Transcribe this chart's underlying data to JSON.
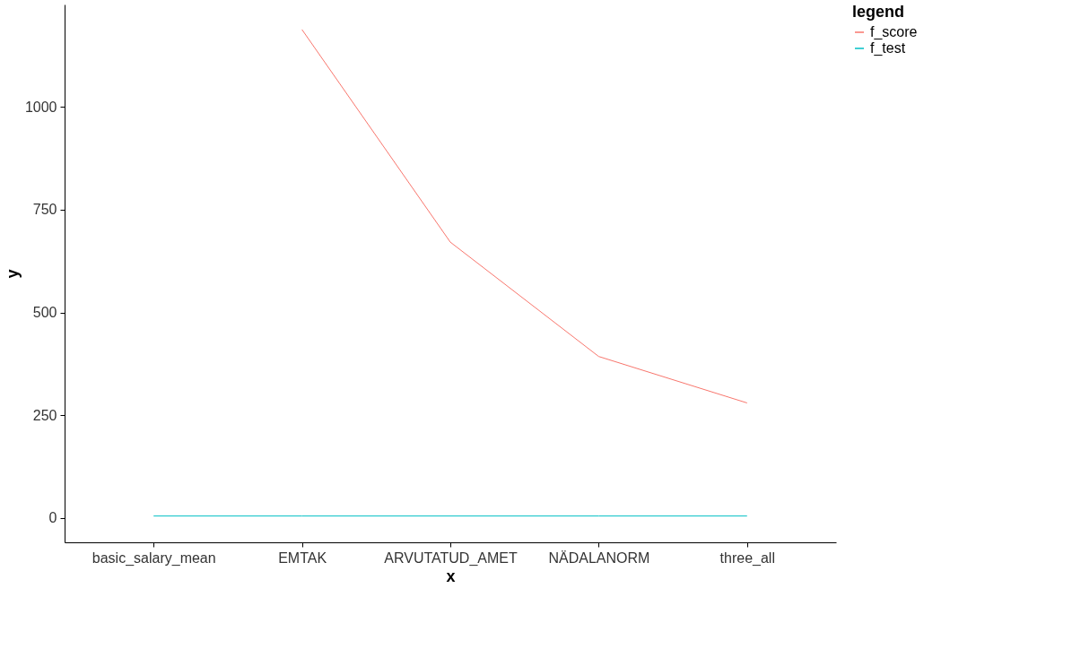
{
  "chart_data": {
    "type": "line",
    "xlabel": "x",
    "ylabel": "y",
    "legend_title": "legend",
    "legend": "right",
    "categories": [
      "basic_salary_mean",
      "EMTAK",
      "ARVUTATUD_AMET",
      "NÄDALANORM",
      "three_all"
    ],
    "series": [
      {
        "name": "f_score",
        "color": "#f8766d",
        "values": [
          null,
          1188,
          671,
          393,
          280
        ]
      },
      {
        "name": "f_test",
        "color": "#00bfc4",
        "values": [
          5,
          5,
          5,
          5,
          5
        ]
      }
    ],
    "ylim": [
      -59,
      1249
    ],
    "yticks": [
      0,
      250,
      500,
      750,
      1000
    ]
  }
}
